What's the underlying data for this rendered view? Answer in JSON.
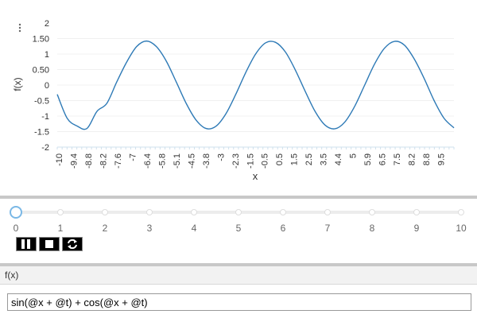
{
  "chart_data": {
    "type": "line",
    "title": "",
    "xlabel": "x",
    "ylabel": "f(x)",
    "xlim": [
      -10,
      10
    ],
    "ylim": [
      -2,
      2
    ],
    "y_ticks": [
      "2",
      "1.50",
      "1",
      "0.50",
      "0",
      "-0.5",
      "-1",
      "-1.5",
      "-2"
    ],
    "x_ticks": [
      "-10",
      "-9.4",
      "-8.8",
      "-8.2",
      "-7.6",
      "-7",
      "-6.4",
      "-5.8",
      "-5.1",
      "-4.5",
      "-3.8",
      "-3",
      "-2.3",
      "-1.5",
      "-0.5",
      "0.5",
      "1.5",
      "2.5",
      "3.5",
      "4.4",
      "5",
      "5.9",
      "6.5",
      "7.5",
      "8.2",
      "8.8",
      "9.5"
    ],
    "series": [
      {
        "function": "sin(x) + cos(x)",
        "x": [
          -10,
          -9.5,
          -9,
          -8.5,
          -8,
          -7.5,
          -7,
          -6.5,
          -6,
          -5.5,
          -5,
          -4.5,
          -4,
          -3.5,
          -3,
          -2.5,
          -2,
          -1.5,
          -1,
          -0.5,
          0,
          0.5,
          1,
          1.5,
          2,
          2.5,
          3,
          3.5,
          4,
          4.5,
          5,
          5.5,
          6,
          6.5,
          7,
          7.5,
          8,
          8.5,
          9,
          9.5,
          10
        ],
        "y": [
          -0.3,
          -1.07,
          -1.32,
          -1.4,
          -0.85,
          -0.59,
          0.1,
          0.74,
          1.24,
          1.42,
          1.24,
          0.77,
          0.1,
          -0.59,
          -1.13,
          -1.4,
          -1.33,
          -0.93,
          -0.3,
          0.4,
          1.0,
          1.36,
          1.38,
          1.07,
          0.49,
          -0.2,
          -0.85,
          -1.29,
          -1.41,
          -1.19,
          -0.68,
          0.0,
          0.68,
          1.19,
          1.41,
          1.29,
          0.84,
          0.21,
          -0.5,
          -1.07,
          -1.38
        ],
        "color": "#2e7ab6"
      }
    ],
    "grid": true
  },
  "slider": {
    "value": 0,
    "min": 0,
    "max": 10,
    "labels": [
      "0",
      "1",
      "2",
      "3",
      "4",
      "5",
      "6",
      "7",
      "8",
      "9",
      "10"
    ]
  },
  "controls": {
    "pause_icon": "pause-icon",
    "stop_icon": "stop-icon",
    "loop_icon": "loop-icon"
  },
  "panel": {
    "title": "f(x)",
    "expression": "sin(@x + @t) + cos(@x + @t)"
  },
  "menu": {
    "icon": "more-vertical-icon"
  }
}
